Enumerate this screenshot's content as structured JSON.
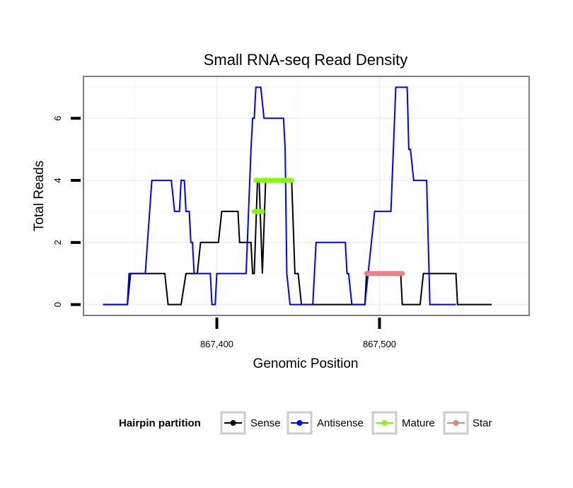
{
  "chart_data": {
    "type": "line",
    "title": "Small RNA-seq Read Density",
    "xlabel": "Genomic Position",
    "ylabel": "Total Reads",
    "xlim": [
      867318,
      867592
    ],
    "ylim": [
      -0.35,
      7.35
    ],
    "x_ticks": [
      867400,
      867500
    ],
    "x_tick_labels": [
      "867,400",
      "867,500"
    ],
    "y_ticks": [
      0,
      2,
      4,
      6
    ],
    "y_tick_labels": [
      "0",
      "2",
      "4",
      "6"
    ],
    "grid": true,
    "legend": {
      "title": "Hairpin partition",
      "position": "bottom",
      "entries": [
        {
          "name": "Sense",
          "color": "#000000"
        },
        {
          "name": "Antisense",
          "color": "#0000ff"
        },
        {
          "name": "Mature",
          "color": "#7fff00"
        },
        {
          "name": "Star",
          "color": "#f08080"
        }
      ]
    },
    "series": [
      {
        "name": "Sense",
        "color": "#000000",
        "points": [
          [
            867330,
            0
          ],
          [
            867345,
            0
          ],
          [
            867347,
            1
          ],
          [
            867368,
            1
          ],
          [
            867370,
            0
          ],
          [
            867378,
            0
          ],
          [
            867381,
            1
          ],
          [
            867388,
            1
          ],
          [
            867390,
            2
          ],
          [
            867401,
            2
          ],
          [
            867403,
            3
          ],
          [
            867413,
            3
          ],
          [
            867414,
            2
          ],
          [
            867421,
            2
          ],
          [
            867422,
            1
          ],
          [
            867423,
            1
          ],
          [
            867425,
            4
          ],
          [
            867426,
            4
          ],
          [
            867428,
            1
          ],
          [
            867430,
            4
          ],
          [
            867446,
            4
          ],
          [
            867448,
            1
          ],
          [
            867450,
            1
          ],
          [
            867452,
            0
          ],
          [
            867491,
            0
          ],
          [
            867492,
            1
          ],
          [
            867513,
            1
          ],
          [
            867514,
            0
          ],
          [
            867525,
            0
          ],
          [
            867527,
            1
          ],
          [
            867547,
            1
          ],
          [
            867548,
            0
          ],
          [
            867569,
            0
          ]
        ]
      },
      {
        "name": "Antisense",
        "color": "#0000ff",
        "points": [
          [
            867330,
            0
          ],
          [
            867345,
            0
          ],
          [
            867346,
            1
          ],
          [
            867356,
            1
          ],
          [
            867360,
            4
          ],
          [
            867372,
            4
          ],
          [
            867374,
            3
          ],
          [
            867377,
            3
          ],
          [
            867378,
            4
          ],
          [
            867380,
            4
          ],
          [
            867381,
            3
          ],
          [
            867383,
            3
          ],
          [
            867384,
            2
          ],
          [
            867385,
            2
          ],
          [
            867386,
            1
          ],
          [
            867396,
            1
          ],
          [
            867397,
            0
          ],
          [
            867399,
            0
          ],
          [
            867400,
            1
          ],
          [
            867418,
            1
          ],
          [
            867421,
            5
          ],
          [
            867422,
            6
          ],
          [
            867423,
            6
          ],
          [
            867424,
            7
          ],
          [
            867427,
            7
          ],
          [
            867429,
            6
          ],
          [
            867441,
            6
          ],
          [
            867442,
            5
          ],
          [
            867443,
            1
          ],
          [
            867445,
            0
          ],
          [
            867459,
            0
          ],
          [
            867461,
            2
          ],
          [
            867479,
            2
          ],
          [
            867480,
            1
          ],
          [
            867481,
            1
          ],
          [
            867483,
            0
          ],
          [
            867491,
            0
          ],
          [
            867493,
            1
          ],
          [
            867497,
            3
          ],
          [
            867507,
            3
          ],
          [
            867510,
            7
          ],
          [
            867517,
            7
          ],
          [
            867518,
            5
          ],
          [
            867519,
            5
          ],
          [
            867521,
            4
          ],
          [
            867529,
            4
          ],
          [
            867531,
            0
          ],
          [
            867547,
            0
          ]
        ]
      },
      {
        "name": "Mature",
        "color": "#7fff00",
        "segments": [
          {
            "y": 4,
            "x": [
              867424,
              867426
            ]
          },
          {
            "y": 4,
            "x": [
              867428,
              867446
            ]
          },
          {
            "y": 3,
            "x": [
              867423,
              867428
            ]
          }
        ]
      },
      {
        "name": "Star",
        "color": "#f08080",
        "segments": [
          {
            "y": 1,
            "x": [
              867492,
              867514
            ]
          }
        ]
      }
    ]
  }
}
